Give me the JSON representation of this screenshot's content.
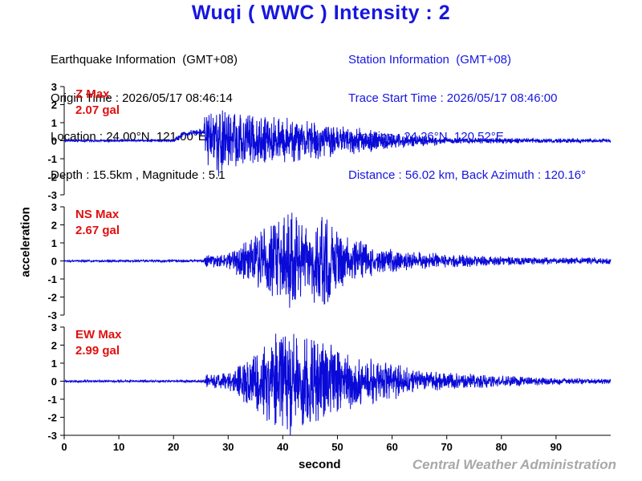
{
  "title": "Wuqi  ( WWC )  Intensity : 2",
  "earthquake_info": {
    "heading": "Earthquake Information  (GMT+08)",
    "origin_time": "Origin Time : 2026/05/17 08:46:14",
    "location": "Location : 24.00°N, 121.00°E",
    "depth_magnitude": "Depth : 15.5km , Magnitude : 5.1"
  },
  "station_info": {
    "heading": "Station Information  (GMT+08)",
    "trace_start": "Trace Start Time : 2026/05/17 08:46:00",
    "location": "Location : 24.26°N, 120.52°E",
    "distance": "Distance : 56.02 km, Back Azimuth : 120.16°"
  },
  "ylabel": "acceleration",
  "xlabel": "second",
  "agency": "Central Weather Administration",
  "colors": {
    "trace": "#0a0ad8",
    "title": "#1616e0",
    "max_label": "#e01010",
    "axis": "#000000"
  },
  "chart_data": {
    "type": "line",
    "xlim": [
      0,
      100
    ],
    "ylim": [
      -3,
      3
    ],
    "x_ticks": [
      0,
      10,
      20,
      30,
      40,
      50,
      60,
      70,
      80,
      90
    ],
    "y_ticks": [
      3,
      2,
      1,
      0,
      -1,
      -2,
      -3
    ],
    "grid": false,
    "series": [
      {
        "name": "Z Max",
        "max_label": "2.07 gal",
        "peak": 2.07,
        "envelope": [
          [
            0,
            0.05
          ],
          [
            20,
            0.05
          ],
          [
            21,
            0.12
          ],
          [
            25.5,
            0.15
          ],
          [
            26,
            1.6
          ],
          [
            30,
            1.2
          ],
          [
            35,
            1.1
          ],
          [
            42,
            1.0
          ],
          [
            50,
            0.7
          ],
          [
            60,
            0.35
          ],
          [
            70,
            0.15
          ],
          [
            100,
            0.08
          ]
        ],
        "offset": [
          [
            0,
            0
          ],
          [
            20,
            0
          ],
          [
            22,
            0.4
          ],
          [
            25.8,
            0.5
          ],
          [
            27,
            0.15
          ],
          [
            30,
            0
          ],
          [
            100,
            0
          ]
        ]
      },
      {
        "name": "NS Max",
        "max_label": "2.67 gal",
        "peak": 2.67,
        "envelope": [
          [
            0,
            0.04
          ],
          [
            25.5,
            0.05
          ],
          [
            26,
            0.25
          ],
          [
            30,
            0.35
          ],
          [
            35,
            1.2
          ],
          [
            40,
            2.2
          ],
          [
            45,
            1.8
          ],
          [
            48,
            2.0
          ],
          [
            52,
            1.0
          ],
          [
            60,
            0.5
          ],
          [
            70,
            0.3
          ],
          [
            80,
            0.2
          ],
          [
            90,
            0.15
          ],
          [
            100,
            0.15
          ]
        ]
      },
      {
        "name": "EW Max",
        "max_label": "2.99 gal",
        "peak": 2.99,
        "envelope": [
          [
            0,
            0.04
          ],
          [
            25.5,
            0.05
          ],
          [
            26,
            0.3
          ],
          [
            30,
            0.4
          ],
          [
            35,
            1.3
          ],
          [
            40,
            2.3
          ],
          [
            45,
            2.0
          ],
          [
            50,
            1.5
          ],
          [
            55,
            1.0
          ],
          [
            60,
            0.9
          ],
          [
            65,
            0.5
          ],
          [
            70,
            0.4
          ],
          [
            80,
            0.25
          ],
          [
            90,
            0.15
          ],
          [
            100,
            0.12
          ]
        ]
      }
    ]
  }
}
